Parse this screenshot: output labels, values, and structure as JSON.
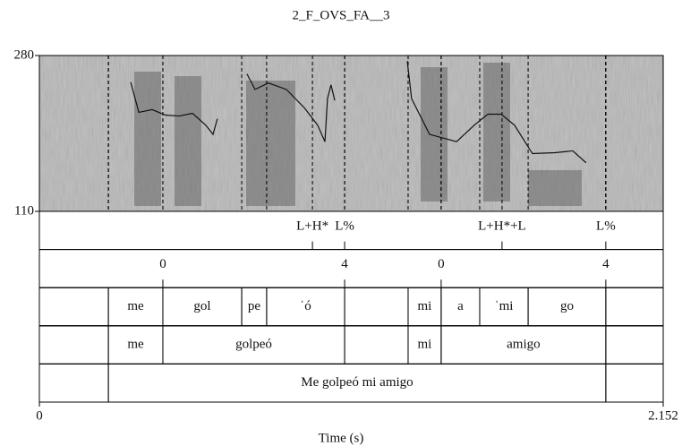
{
  "chart_data": {
    "type": "textgrid",
    "title": "2_F_OVS_FA__3",
    "xlabel": "Time (s)",
    "xlim": [
      0,
      2.152
    ],
    "xticks": [
      0,
      2.152
    ],
    "ylim": [
      110,
      280
    ],
    "yticks": [
      110,
      280
    ],
    "pitch": {
      "color": "#111111",
      "x": [
        0.315,
        0.343,
        0.389,
        0.435,
        0.482,
        0.528,
        0.574,
        0.599,
        0.614,
        null,
        0.716,
        0.744,
        0.79,
        0.852,
        0.914,
        0.96,
        0.985,
        0.994,
        1.006,
        1.019,
        null,
        1.269,
        1.284,
        1.346,
        1.439,
        1.5,
        1.547,
        1.593,
        1.639,
        1.701,
        1.778,
        1.84,
        1.886
      ],
      "y": [
        251,
        218,
        221,
        215,
        214,
        217,
        204,
        194,
        211,
        null,
        260,
        243,
        250,
        243,
        223,
        204,
        186,
        233,
        248,
        231,
        null,
        274,
        233,
        194,
        186,
        204,
        216,
        216,
        204,
        173,
        174,
        176,
        163
      ]
    },
    "tiers": [
      {
        "kind": "point",
        "points": [
          {
            "time": 0.942,
            "label": "L+H*"
          },
          {
            "time": 1.053,
            "label": "L%"
          },
          {
            "time": 1.596,
            "label": "L+H*+L"
          },
          {
            "time": 1.954,
            "label": "L%"
          }
        ]
      },
      {
        "kind": "point",
        "points": [
          {
            "time": 0.426,
            "label": "0"
          },
          {
            "time": 1.053,
            "label": "4"
          },
          {
            "time": 1.386,
            "label": "0"
          },
          {
            "time": 1.954,
            "label": "4"
          }
        ]
      },
      {
        "kind": "interval",
        "intervals": [
          {
            "xmin": 0,
            "xmax": 0.238,
            "label": null
          },
          {
            "xmin": 0.238,
            "xmax": 0.426,
            "label": "me"
          },
          {
            "xmin": 0.426,
            "xmax": 0.698,
            "label": "gol"
          },
          {
            "xmin": 0.698,
            "xmax": 0.784,
            "label": "pe"
          },
          {
            "xmin": 0.784,
            "xmax": 1.053,
            "label": "ˈó"
          },
          {
            "xmin": 1.053,
            "xmax": 1.272,
            "label": null
          },
          {
            "xmin": 1.272,
            "xmax": 1.386,
            "label": "mi"
          },
          {
            "xmin": 1.386,
            "xmax": 1.519,
            "label": "a"
          },
          {
            "xmin": 1.519,
            "xmax": 1.686,
            "label": "ˈmi"
          },
          {
            "xmin": 1.686,
            "xmax": 1.954,
            "label": "go"
          },
          {
            "xmin": 1.954,
            "xmax": 2.152,
            "label": null
          }
        ]
      },
      {
        "kind": "interval",
        "intervals": [
          {
            "xmin": 0,
            "xmax": 0.238,
            "label": null
          },
          {
            "xmin": 0.238,
            "xmax": 0.426,
            "label": "me"
          },
          {
            "xmin": 0.426,
            "xmax": 1.053,
            "label": "golpeó"
          },
          {
            "xmin": 1.053,
            "xmax": 1.272,
            "label": null
          },
          {
            "xmin": 1.272,
            "xmax": 1.386,
            "label": "mi"
          },
          {
            "xmin": 1.386,
            "xmax": 1.954,
            "label": "amigo"
          },
          {
            "xmin": 1.954,
            "xmax": 2.152,
            "label": null
          }
        ]
      },
      {
        "kind": "interval",
        "intervals": [
          {
            "xmin": 0,
            "xmax": 0.238,
            "label": null
          },
          {
            "xmin": 0.238,
            "xmax": 1.954,
            "label": "Me golpeó mi amigo"
          },
          {
            "xmin": 1.954,
            "xmax": 2.152,
            "label": null
          }
        ]
      }
    ]
  }
}
